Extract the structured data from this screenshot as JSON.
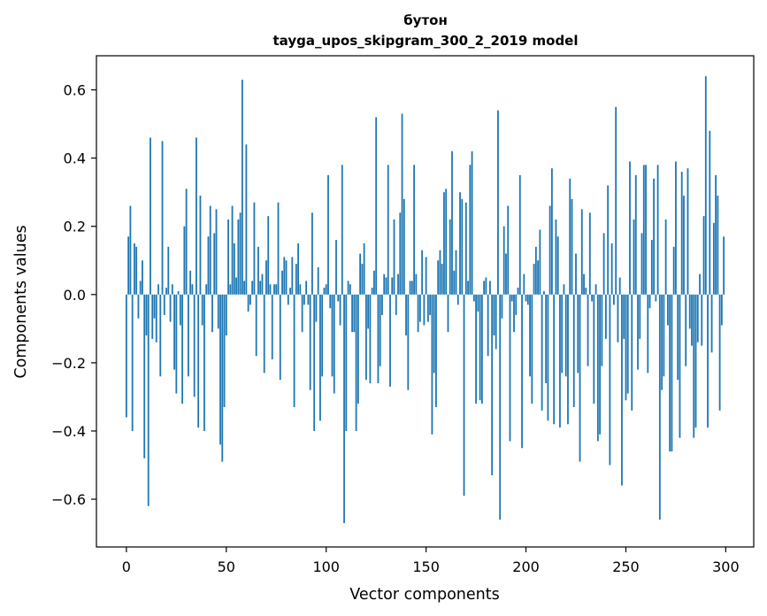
{
  "chart_data": {
    "type": "bar",
    "title": "бутон",
    "subtitle": "tayga_upos_skipgram_300_2_2019 model",
    "xlabel": "Vector components",
    "ylabel": "Components values",
    "xlim": [
      -15,
      314
    ],
    "ylim": [
      -0.74,
      0.7
    ],
    "xticks": [
      0,
      50,
      100,
      150,
      200,
      250,
      300
    ],
    "xtick_labels": [
      "0",
      "50",
      "100",
      "150",
      "200",
      "250",
      "300"
    ],
    "yticks": [
      0.6,
      0.4,
      0.2,
      0.0,
      -0.2,
      -0.4,
      -0.6
    ],
    "ytick_labels": [
      "0.6",
      "0.4",
      "0.2",
      "0.0",
      "−0.2",
      "−0.4",
      "−0.6"
    ],
    "bar_color": "#1f77b4",
    "values": [
      -0.36,
      0.17,
      0.26,
      -0.4,
      0.15,
      0.14,
      -0.07,
      0.04,
      0.1,
      -0.48,
      -0.12,
      -0.62,
      0.46,
      -0.13,
      -0.07,
      -0.14,
      0.03,
      -0.24,
      0.45,
      -0.06,
      0.02,
      0.14,
      -0.08,
      0.03,
      -0.22,
      -0.29,
      0.01,
      -0.09,
      -0.32,
      0.2,
      0.31,
      -0.24,
      0.07,
      0.03,
      -0.3,
      0.46,
      -0.39,
      0.29,
      -0.09,
      -0.4,
      0.03,
      0.17,
      0.26,
      -0.11,
      0.18,
      0.25,
      -0.1,
      -0.44,
      -0.49,
      -0.33,
      -0.12,
      0.22,
      0.03,
      0.26,
      0.15,
      0.05,
      0.22,
      0.24,
      0.63,
      0.04,
      0.44,
      -0.05,
      -0.03,
      0.04,
      0.27,
      -0.18,
      0.14,
      0.04,
      0.06,
      -0.23,
      0.1,
      0.23,
      0.03,
      -0.19,
      0.03,
      0.03,
      0.27,
      -0.25,
      0.07,
      0.11,
      0.1,
      -0.03,
      0.02,
      0.11,
      -0.33,
      0.09,
      0.15,
      0.03,
      -0.11,
      -0.03,
      0.04,
      -0.03,
      -0.28,
      0.24,
      -0.4,
      -0.08,
      0.08,
      -0.37,
      -0.24,
      0.02,
      0.03,
      0.35,
      -0.04,
      -0.24,
      -0.29,
      0.16,
      -0.02,
      -0.09,
      0.38,
      -0.67,
      -0.4,
      0.04,
      0.03,
      -0.11,
      -0.11,
      -0.4,
      -0.32,
      0.12,
      0.09,
      0.15,
      -0.25,
      -0.1,
      -0.26,
      0.02,
      0.07,
      0.52,
      -0.26,
      -0.21,
      -0.06,
      0.06,
      0.05,
      0.38,
      -0.27,
      0.05,
      0.22,
      -0.06,
      0.06,
      0.24,
      0.53,
      0.28,
      -0.12,
      -0.28,
      0.04,
      0.04,
      0.38,
      0.06,
      -0.11,
      -0.08,
      0.13,
      -0.09,
      0.11,
      -0.08,
      -0.06,
      -0.41,
      -0.23,
      -0.33,
      0.1,
      0.13,
      0.09,
      0.3,
      0.31,
      -0.11,
      0.22,
      0.42,
      0.07,
      0.13,
      -0.03,
      0.3,
      0.28,
      -0.59,
      0.27,
      0.04,
      0.38,
      0.42,
      -0.02,
      -0.32,
      -0.05,
      -0.31,
      -0.32,
      0.04,
      0.05,
      -0.18,
      0.04,
      -0.53,
      -0.12,
      -0.16,
      0.54,
      -0.66,
      -0.07,
      0.2,
      0.12,
      0.26,
      -0.43,
      -0.02,
      -0.11,
      -0.06,
      0.02,
      0.35,
      -0.45,
      0.06,
      -0.02,
      -0.03,
      -0.24,
      -0.32,
      0.09,
      0.14,
      0.1,
      0.19,
      -0.34,
      0.01,
      -0.26,
      -0.37,
      0.26,
      0.37,
      -0.38,
      0.22,
      0.17,
      -0.39,
      -0.23,
      0.03,
      -0.24,
      -0.38,
      0.34,
      0.28,
      -0.33,
      0.12,
      -0.23,
      -0.49,
      0.25,
      0.06,
      0.02,
      -0.21,
      0.24,
      -0.02,
      -0.32,
      0.03,
      -0.43,
      -0.41,
      -0.21,
      0.18,
      -0.13,
      0.32,
      -0.5,
      0.15,
      -0.03,
      0.55,
      -0.14,
      0.05,
      -0.56,
      -0.13,
      -0.31,
      -0.29,
      0.39,
      -0.34,
      0.22,
      0.35,
      -0.22,
      -0.13,
      0.18,
      0.38,
      0.38,
      -0.23,
      -0.04,
      0.16,
      0.34,
      -0.02,
      0.38,
      -0.66,
      -0.28,
      -0.24,
      0.22,
      -0.09,
      -0.46,
      -0.46,
      0.14,
      0.39,
      -0.25,
      -0.42,
      0.36,
      0.29,
      -0.21,
      0.37,
      -0.1,
      -0.15,
      -0.42,
      -0.39,
      -0.14,
      0.06,
      -0.15,
      0.23,
      0.64,
      -0.39,
      0.48,
      -0.17,
      0.21,
      0.35,
      0.29,
      -0.34,
      -0.09,
      0.17
    ]
  }
}
